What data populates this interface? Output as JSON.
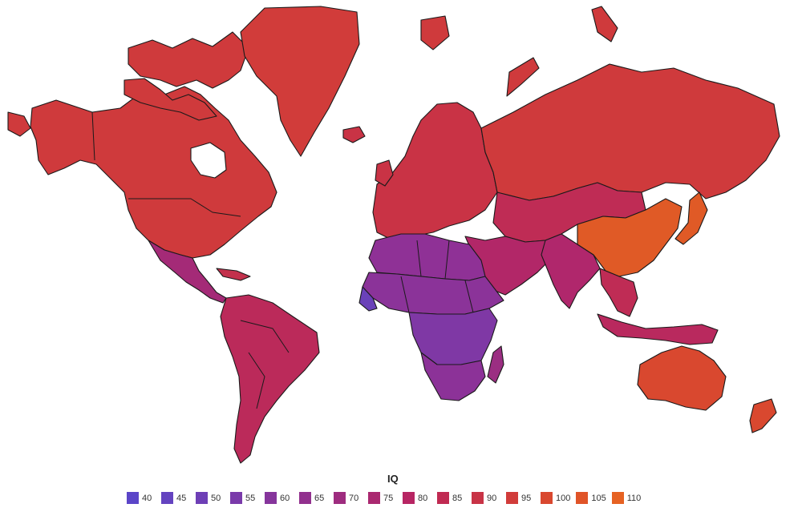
{
  "legend": {
    "title": "IQ",
    "items": [
      {
        "label": "40",
        "color": "#5b45c8"
      },
      {
        "label": "45",
        "color": "#6443c0"
      },
      {
        "label": "50",
        "color": "#6e3fb6"
      },
      {
        "label": "55",
        "color": "#7a3aaa"
      },
      {
        "label": "60",
        "color": "#86359c"
      },
      {
        "label": "65",
        "color": "#92308e"
      },
      {
        "label": "70",
        "color": "#9e2c7f"
      },
      {
        "label": "75",
        "color": "#aa2870"
      },
      {
        "label": "80",
        "color": "#b72563"
      },
      {
        "label": "85",
        "color": "#c02a52"
      },
      {
        "label": "90",
        "color": "#c83346"
      },
      {
        "label": "95",
        "color": "#d13c3a"
      },
      {
        "label": "100",
        "color": "#d9482f"
      },
      {
        "label": "105",
        "color": "#e05428"
      },
      {
        "label": "110",
        "color": "#e66223"
      }
    ]
  },
  "regions": {
    "north_america": "#cf3a3c",
    "greenland": "#d13c3a",
    "central_america": "#a42a77",
    "caribbean": "#c3314c",
    "south_america": "#bb2a5a",
    "europe": "#c93345",
    "russia": "#cf3a3c",
    "central_asia": "#bf2c55",
    "middle_east": "#b22768",
    "india": "#b0276c",
    "east_asia": "#e05a26",
    "southeast_asia": "#bf2c55",
    "africa_north": "#8f3196",
    "africa_sahel": "#8b3399",
    "africa_central": "#7f38a5",
    "africa_south": "#8c3298",
    "madagascar": "#9b2e82",
    "australia": "#d9482f",
    "new_zealand": "#d9482f",
    "indonesia": "#b9295e",
    "west_africa_coast": "#6a41b9"
  }
}
